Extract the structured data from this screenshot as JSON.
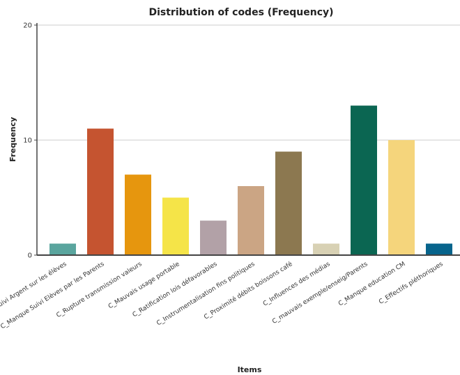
{
  "chart_data": {
    "type": "bar",
    "title": "Distribution of codes (Frequency)",
    "xlabel": "Items",
    "ylabel": "Frequency",
    "ylim": [
      0,
      20
    ],
    "yticks": [
      0,
      10,
      20
    ],
    "grid": true,
    "categories": [
      "C_Manque Suivi Argent sur les élèves",
      "C_Manque Suivi Elèves par les Parents",
      "C_Rupture transmission valeurs",
      "C_Mauvais usage portable",
      "C_Ratification lois défavorables",
      "C_Instrumentalisation fins politiques",
      "C_Proximité débits boissons café",
      "C_Influences des médias",
      "C_mauvais exemple/enseig/Parents",
      "C_Manque education CM",
      "C_Effectifs pléthoriques"
    ],
    "values": [
      1,
      11,
      7,
      5,
      3,
      6,
      9,
      1,
      13,
      10,
      1
    ],
    "colors": [
      "#5aa59e",
      "#c55430",
      "#e6960e",
      "#f5e448",
      "#b2a1a7",
      "#cba584",
      "#8c7850",
      "#d8d1b4",
      "#0b6652",
      "#f5d57c",
      "#07648c"
    ]
  }
}
